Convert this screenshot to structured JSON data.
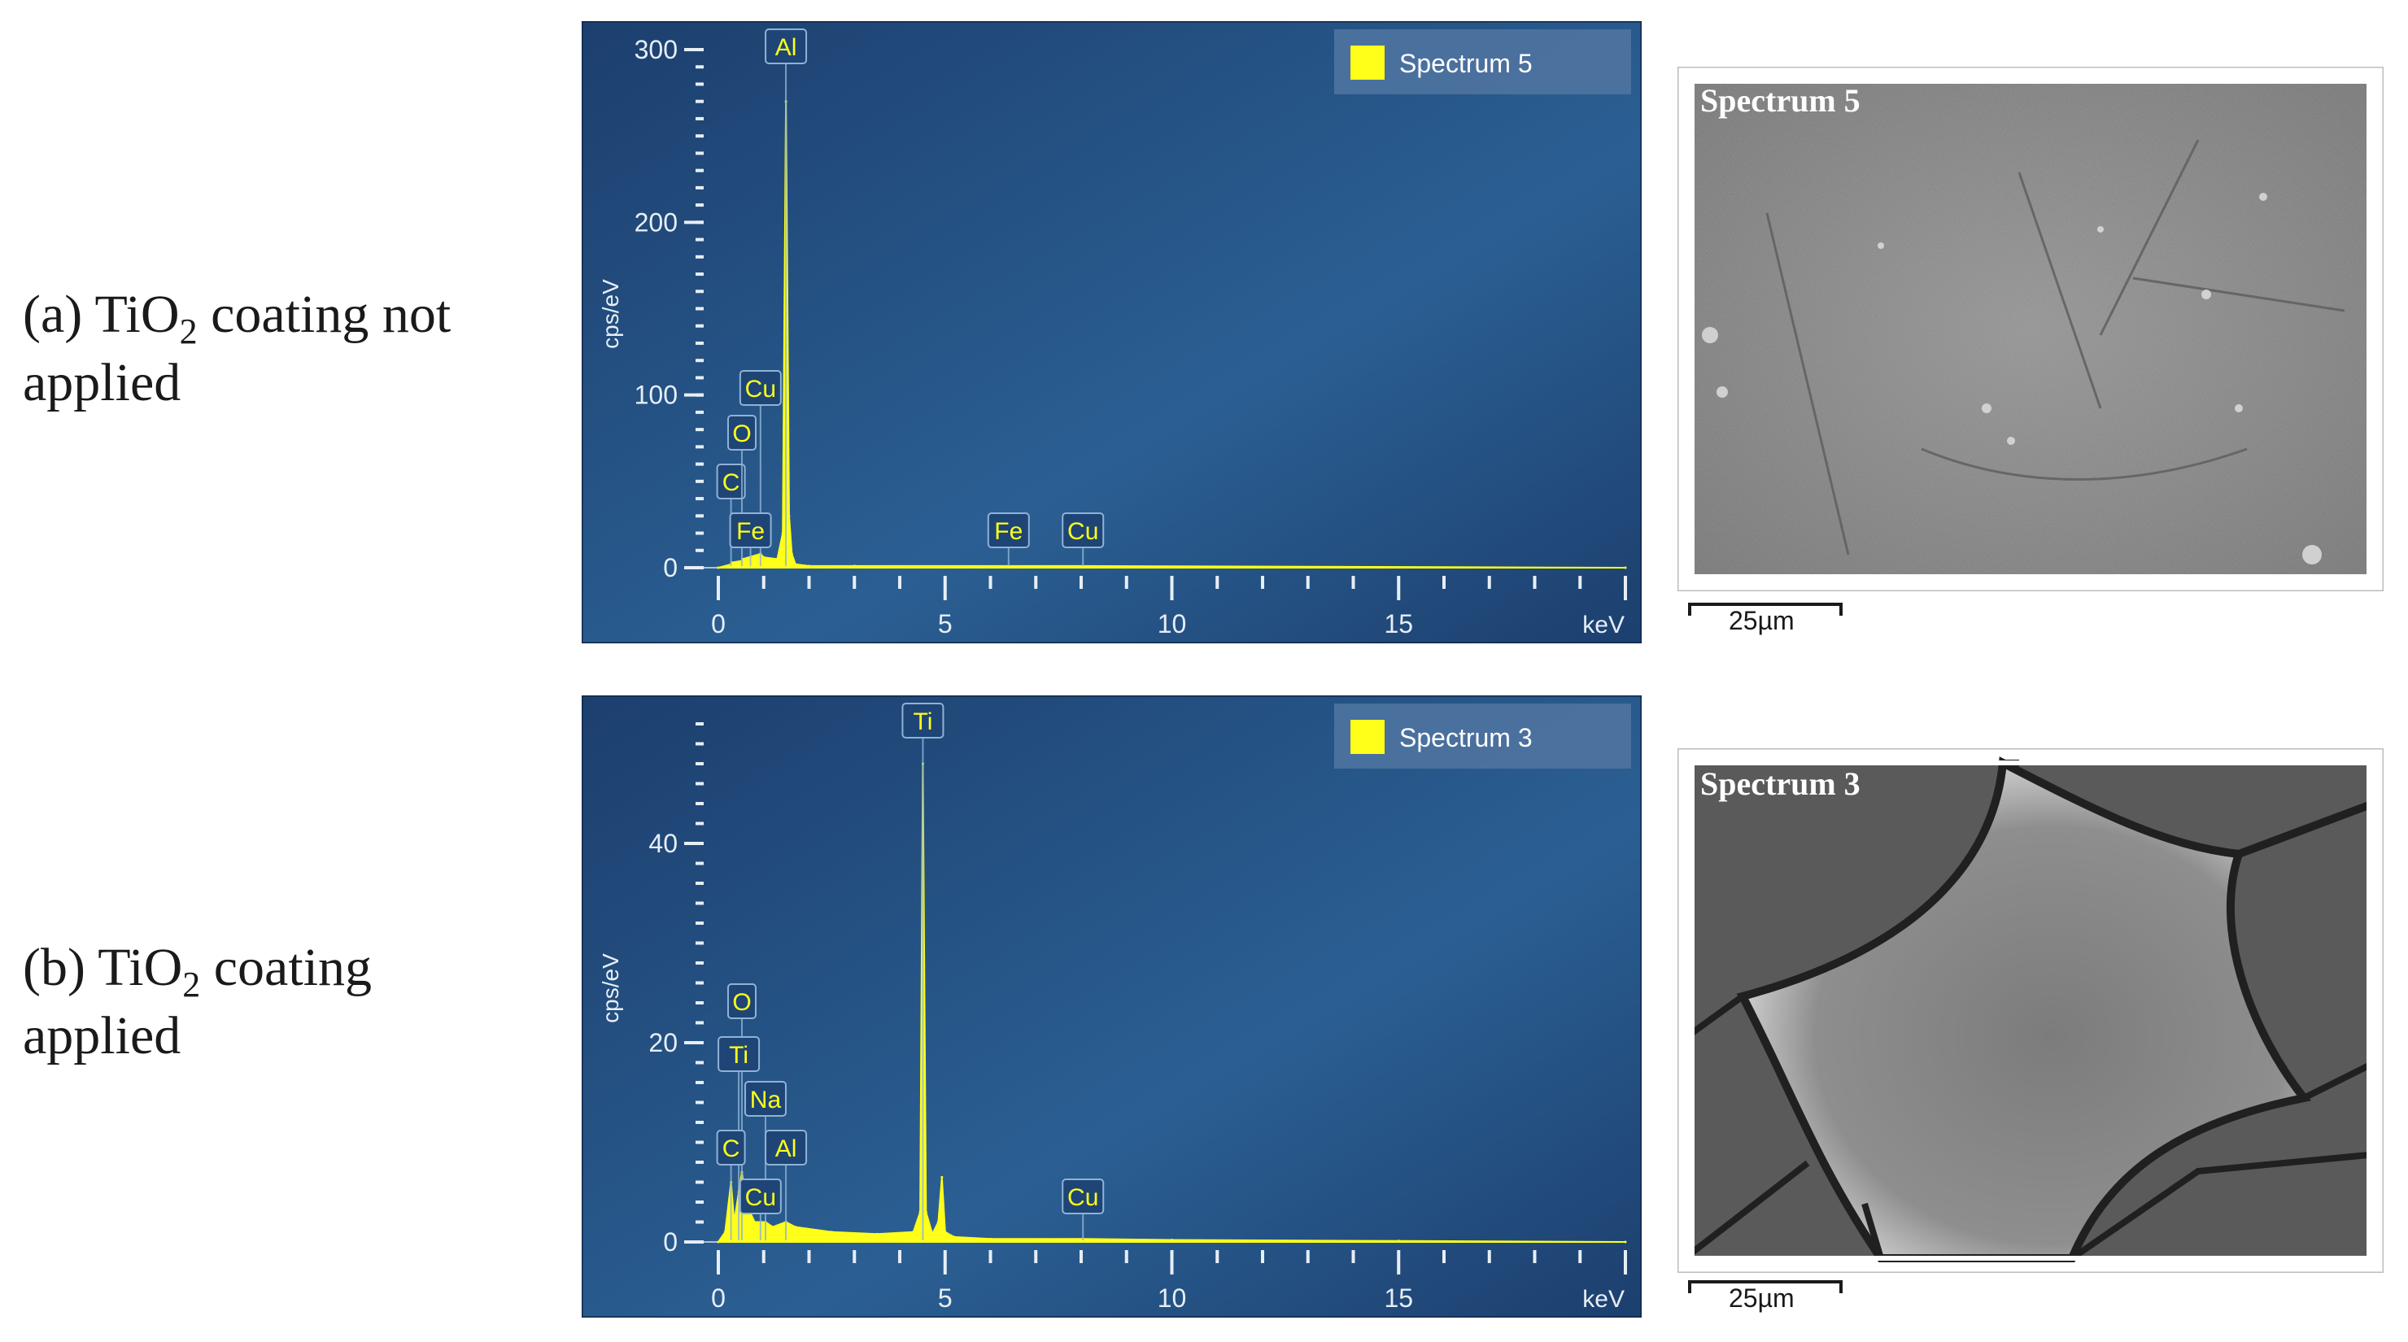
{
  "rows": [
    {
      "label_prefix": "(a) TiO",
      "label_sub": "2",
      "label_suffix": " coating not",
      "label_line2": "applied",
      "spectrum_label": "Spectrum 5",
      "scale_label": "25µm"
    },
    {
      "label_prefix": "(b) TiO",
      "label_sub": "2",
      "label_suffix": " coating",
      "label_line2": "applied",
      "spectrum_label": "Spectrum 3",
      "scale_label": "25µm"
    }
  ],
  "colors": {
    "panel_bg_dark": "#1c3f6e",
    "panel_bg_light": "#2b5f93",
    "spectrum": "#ffff1a",
    "axis": "#e6eef7",
    "label_box_border": "#8fb3d6",
    "legend_bg": "#4f73a0"
  },
  "chart_data": [
    {
      "type": "line",
      "title": "",
      "xlabel": "keV",
      "ylabel": "cps/eV",
      "xlim": [
        0,
        20
      ],
      "ylim": [
        0,
        300
      ],
      "x_ticks": [
        0,
        5,
        10,
        15
      ],
      "y_ticks": [
        0,
        100,
        200,
        300
      ],
      "legend": "top-right",
      "series": [
        {
          "name": "Spectrum 5",
          "x": [
            0,
            0.28,
            0.3,
            0.52,
            0.54,
            0.93,
            1.0,
            1.3,
            1.42,
            1.49,
            1.56,
            1.62,
            1.7,
            2,
            3,
            6.4,
            8.04,
            20
          ],
          "y": [
            0,
            2,
            3,
            4,
            5,
            8,
            6,
            5,
            20,
            270,
            30,
            8,
            2,
            1,
            1,
            1,
            1,
            0
          ]
        }
      ],
      "peak_labels": [
        {
          "text": "C",
          "x": 0.28
        },
        {
          "text": "O",
          "x": 0.52
        },
        {
          "text": "Cu",
          "x": 0.93
        },
        {
          "text": "Fe",
          "x": 0.71
        },
        {
          "text": "Al",
          "x": 1.49
        },
        {
          "text": "Fe",
          "x": 6.4
        },
        {
          "text": "Cu",
          "x": 8.04
        }
      ]
    },
    {
      "type": "line",
      "title": "",
      "xlabel": "keV",
      "ylabel": "cps/eV",
      "xlim": [
        0,
        20
      ],
      "ylim": [
        0,
        52
      ],
      "x_ticks": [
        0,
        5,
        10,
        15
      ],
      "y_ticks": [
        0,
        20,
        40
      ],
      "legend": "top-right",
      "series": [
        {
          "name": "Spectrum 3",
          "x": [
            0,
            0.15,
            0.28,
            0.35,
            0.45,
            0.52,
            0.6,
            0.8,
            1.04,
            1.2,
            1.49,
            1.7,
            2.5,
            3.5,
            4.3,
            4.45,
            4.51,
            4.58,
            4.72,
            4.85,
            4.93,
            5.0,
            5.2,
            6,
            8.04,
            10,
            15,
            20
          ],
          "y": [
            0,
            1,
            6,
            2,
            5,
            7,
            4,
            2,
            2,
            1.5,
            2,
            1.5,
            1,
            0.8,
            1,
            3,
            48,
            3,
            0.8,
            2,
            6.5,
            1,
            0.5,
            0.3,
            0.3,
            0.2,
            0.1,
            0
          ]
        }
      ],
      "peak_labels": [
        {
          "text": "O",
          "x": 0.52
        },
        {
          "text": "Ti",
          "x": 0.45
        },
        {
          "text": "Na",
          "x": 1.04
        },
        {
          "text": "C",
          "x": 0.28
        },
        {
          "text": "Al",
          "x": 1.49
        },
        {
          "text": "Cu",
          "x": 0.93
        },
        {
          "text": "Ti",
          "x": 4.51
        },
        {
          "text": "Cu",
          "x": 8.04
        }
      ]
    }
  ]
}
